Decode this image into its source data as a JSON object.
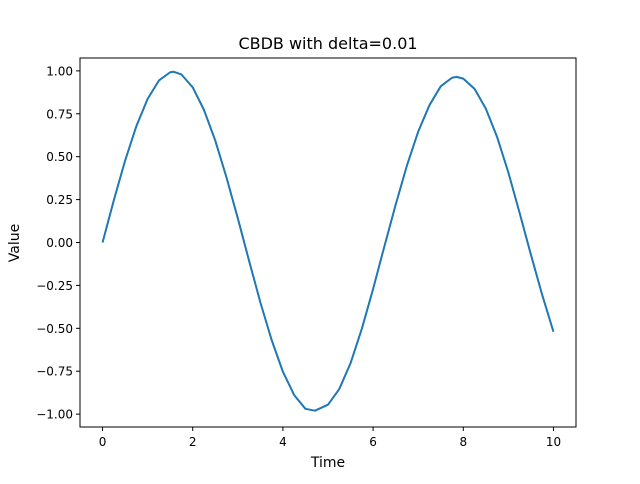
{
  "chart_data": {
    "type": "line",
    "title": "CBDB with delta=0.01",
    "xlabel": "Time",
    "ylabel": "Value",
    "xlim": [
      -0.5,
      10.5
    ],
    "ylim": [
      -1.075,
      1.075
    ],
    "xticks": [
      0,
      2,
      4,
      6,
      8,
      10
    ],
    "xtick_labels": [
      "0",
      "2",
      "4",
      "6",
      "8",
      "10"
    ],
    "yticks": [
      -1.0,
      -0.75,
      -0.5,
      -0.25,
      0.0,
      0.25,
      0.5,
      0.75,
      1.0
    ],
    "ytick_labels": [
      "−1.00",
      "−0.75",
      "−0.50",
      "−0.25",
      "0.00",
      "0.25",
      "0.50",
      "0.75",
      "1.00"
    ],
    "grid": false,
    "series": [
      {
        "color": "#1f77b4",
        "x": [
          0.0,
          0.25,
          0.5,
          0.75,
          1.0,
          1.25,
          1.5,
          1.57,
          1.75,
          2.0,
          2.25,
          2.5,
          2.75,
          3.0,
          3.25,
          3.5,
          3.75,
          4.0,
          4.25,
          4.5,
          4.71,
          5.0,
          5.25,
          5.5,
          5.75,
          6.0,
          6.25,
          6.5,
          6.75,
          7.0,
          7.25,
          7.5,
          7.75,
          7.85,
          8.0,
          8.25,
          8.5,
          8.75,
          9.0,
          9.25,
          9.5,
          9.75,
          10.0
        ],
        "y": [
          0.0,
          0.246,
          0.477,
          0.678,
          0.837,
          0.944,
          0.992,
          0.995,
          0.979,
          0.904,
          0.772,
          0.594,
          0.378,
          0.141,
          -0.107,
          -0.349,
          -0.568,
          -0.753,
          -0.889,
          -0.969,
          -0.98,
          -0.945,
          -0.854,
          -0.703,
          -0.503,
          -0.271,
          -0.023,
          0.22,
          0.448,
          0.646,
          0.8,
          0.91,
          0.96,
          0.965,
          0.955,
          0.895,
          0.78,
          0.615,
          0.408,
          0.172,
          -0.071,
          -0.305,
          -0.52
        ]
      }
    ]
  }
}
